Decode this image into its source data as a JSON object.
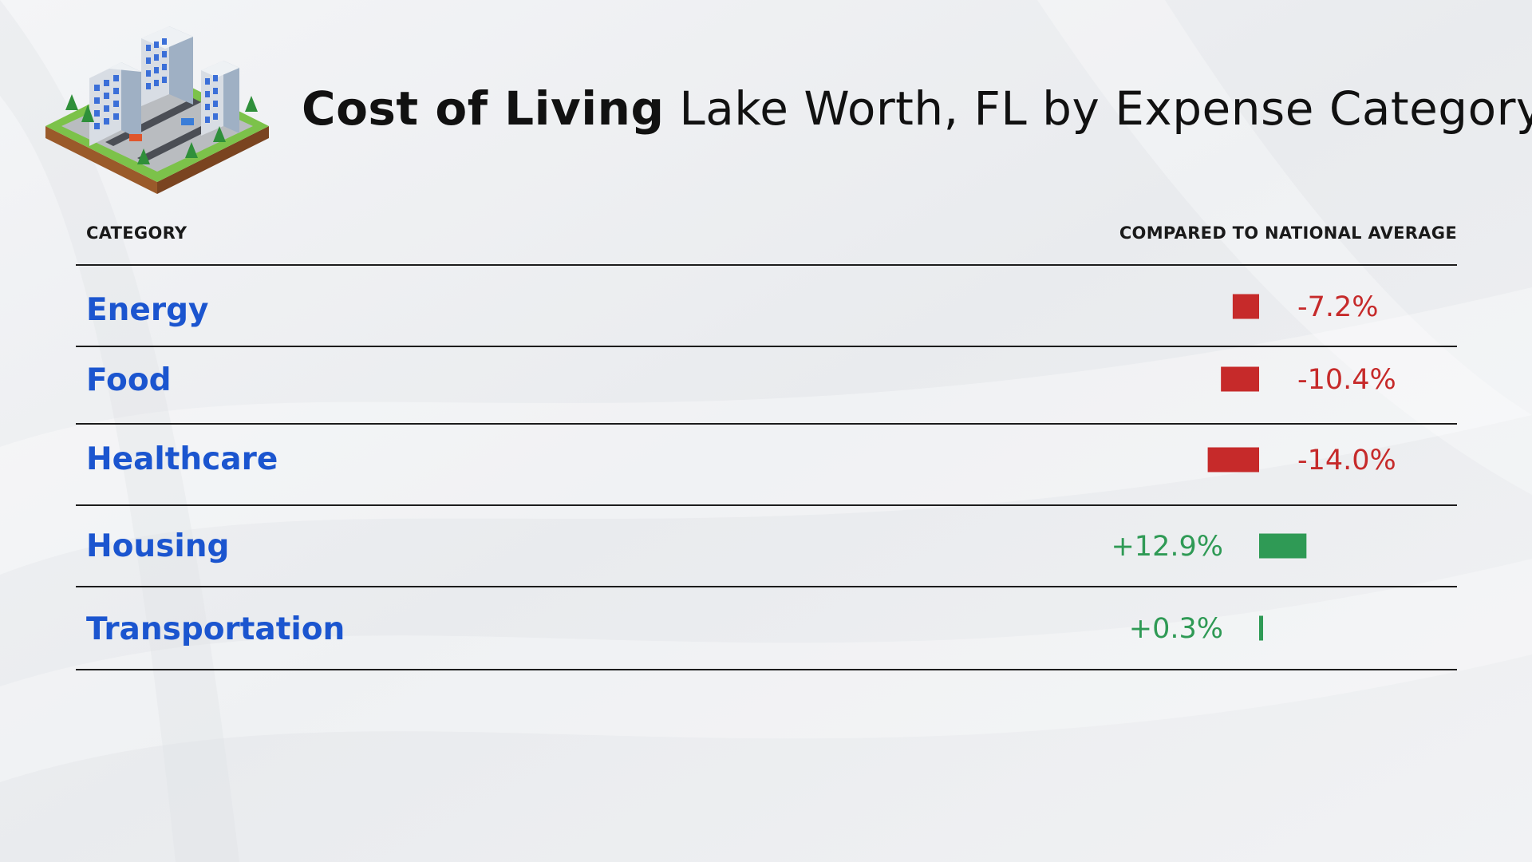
{
  "header": {
    "title_strong": "Cost of Living",
    "title_rest": "Lake Worth, FL by Expense Category"
  },
  "table": {
    "col_category": "CATEGORY",
    "col_compare": "COMPARED TO NATIONAL AVERAGE"
  },
  "colors": {
    "negative": "#c62a2a",
    "positive": "#2f9a55",
    "category_text": "#1b55cf"
  },
  "chart_data": {
    "type": "bar",
    "orientation": "horizontal",
    "categories": [
      "Energy",
      "Food",
      "Healthcare",
      "Housing",
      "Transportation"
    ],
    "values": [
      -7.2,
      -10.4,
      -14.0,
      12.9,
      0.3
    ],
    "value_labels": [
      "-7.2%",
      "-10.4%",
      "-14.0%",
      "+12.9%",
      "+0.3%"
    ],
    "baseline": 0,
    "grid": false
  }
}
